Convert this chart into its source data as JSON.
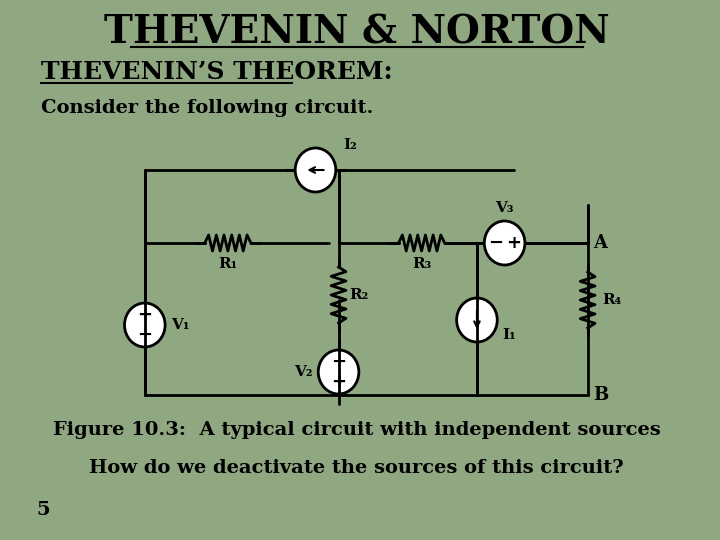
{
  "background_color": "#8fa882",
  "title": "THEVENIN & NORTON",
  "title_fontsize": 28,
  "subtitle": "THEVENIN’S THEOREM:",
  "subtitle_fontsize": 18,
  "body_text1": "Consider the following circuit.",
  "body_fontsize": 14,
  "figure_caption": "Figure 10.3:  A typical circuit with independent sources",
  "caption_fontsize": 14,
  "question_text": "How do we deactivate the sources of this circuit?",
  "question_fontsize": 14,
  "page_number": "5",
  "page_num_fontsize": 14,
  "text_color": "#000000"
}
